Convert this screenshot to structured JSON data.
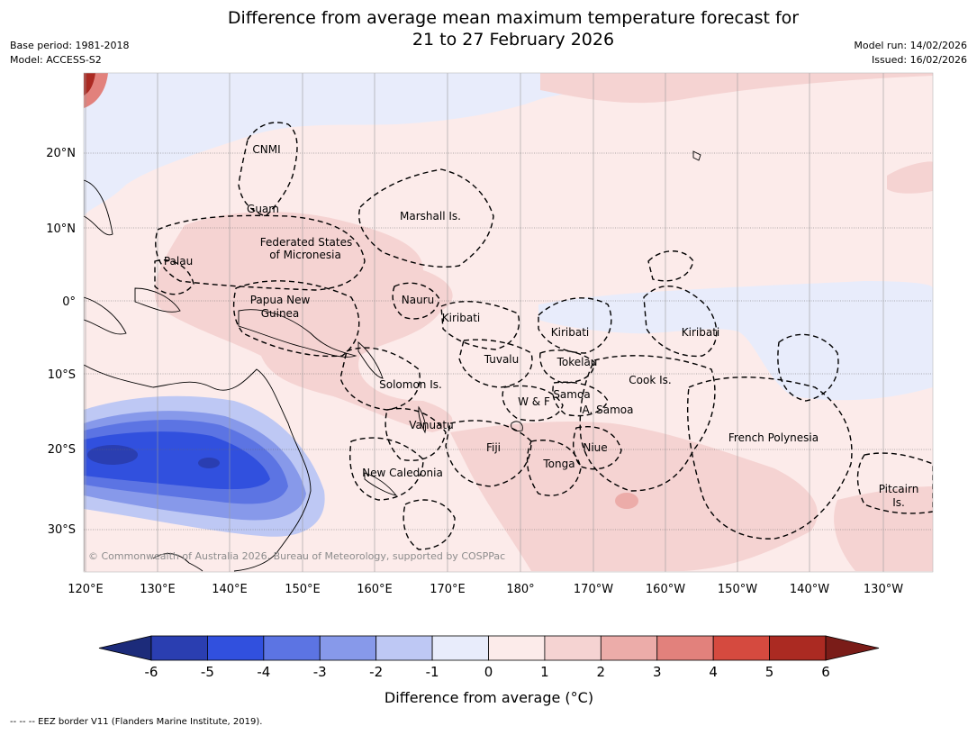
{
  "title": {
    "line1": "Difference from average mean maximum temperature forecast for",
    "line2": "21 to 27 February 2026"
  },
  "meta_left": {
    "base_period": "Base period: 1981-2018",
    "model": "Model: ACCESS-S2"
  },
  "meta_right": {
    "model_run": "Model run: 14/02/2026",
    "issued": "Issued: 16/02/2026"
  },
  "map": {
    "lon_ticks": [
      "120°E",
      "130°E",
      "140°E",
      "150°E",
      "160°E",
      "170°E",
      "180°",
      "170°W",
      "160°W",
      "150°W",
      "140°W",
      "130°W"
    ],
    "lat_ticks": [
      "20°N",
      "10°N",
      "0°",
      "10°S",
      "20°S",
      "30°S"
    ],
    "regions": [
      {
        "name": "CNMI"
      },
      {
        "name": "Guam"
      },
      {
        "name": "Marshall Is."
      },
      {
        "name": "Federated States"
      },
      {
        "name": "of Micronesia"
      },
      {
        "name": "Palau"
      },
      {
        "name": "Papua New"
      },
      {
        "name": "Guinea"
      },
      {
        "name": "Nauru"
      },
      {
        "name": "Kiribati"
      },
      {
        "name": "Kiribati"
      },
      {
        "name": "Kiribati"
      },
      {
        "name": "Tuvalu"
      },
      {
        "name": "Tokelau"
      },
      {
        "name": "Solomon Is."
      },
      {
        "name": "Cook Is."
      },
      {
        "name": "W & F"
      },
      {
        "name": "Samoa"
      },
      {
        "name": "A. Samoa"
      },
      {
        "name": "Vanuatu"
      },
      {
        "name": "Fiji"
      },
      {
        "name": "Niue"
      },
      {
        "name": "French Polynesia"
      },
      {
        "name": "Tonga"
      },
      {
        "name": "New Caledonia"
      },
      {
        "name": "Pitcairn"
      },
      {
        "name": "Is."
      }
    ],
    "copyright": "© Commonwealth of Australia 2026, Bureau of Meteorology, supported by COSPPac"
  },
  "colorbar": {
    "ticks": [
      "-6",
      "-5",
      "-4",
      "-3",
      "-2",
      "-1",
      "0",
      "1",
      "2",
      "3",
      "4",
      "5",
      "6"
    ],
    "colors": [
      "#2a3eb1",
      "#3150de",
      "#5c74e3",
      "#8799ea",
      "#bec8f4",
      "#e8ecfb",
      "#fcebea",
      "#f5d3d2",
      "#ecaca9",
      "#e2817c",
      "#d54a3f",
      "#ab2a22"
    ],
    "under_color": "#1c2b7a",
    "over_color": "#7a1c18",
    "label": "Difference from average (°C)"
  },
  "footnote": "--  --  -- EEZ border V11 (Flanders Marine Institute, 2019)."
}
